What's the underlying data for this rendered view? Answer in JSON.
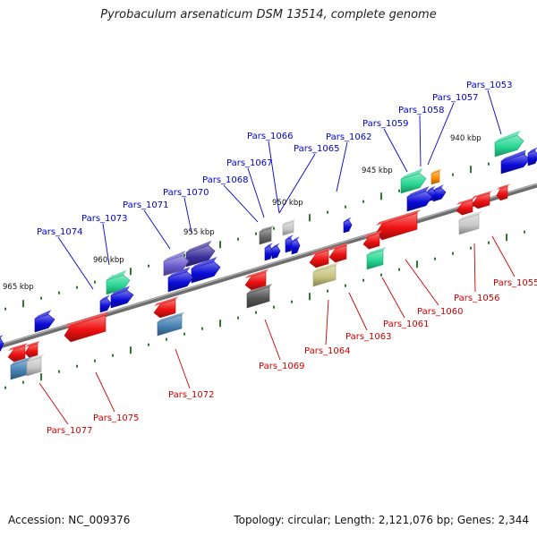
{
  "title": "Pyrobaculum arsenaticum DSM 13514, complete genome",
  "footer": {
    "accession": "Accession: NC_009376",
    "stats": "Topology: circular; Length: 2,121,076 bp; Genes: 2,344"
  },
  "colors": {
    "forward_label": "#0000cc",
    "reverse_label": "#cc0000",
    "backbone": "#7a7a7a",
    "tick": "#2d7a2d"
  },
  "scale_labels": [
    "940 kbp",
    "945 kbp",
    "950 kbp",
    "955 kbp",
    "960 kbp",
    "965 kbp"
  ],
  "forward_genes": [
    "Pars_1053",
    "Pars_1057",
    "Pars_1058",
    "Pars_1059",
    "Pars_1062",
    "Pars_1065",
    "Pars_1066",
    "Pars_1067",
    "Pars_1068",
    "Pars_1070",
    "Pars_1071",
    "Pars_1073",
    "Pars_1074"
  ],
  "reverse_genes": [
    "Pars_1055",
    "Pars_1056",
    "Pars_1060",
    "Pars_1061",
    "Pars_1063",
    "Pars_1064",
    "Pars_1069",
    "Pars_1072",
    "Pars_1075",
    "Pars_1077"
  ]
}
